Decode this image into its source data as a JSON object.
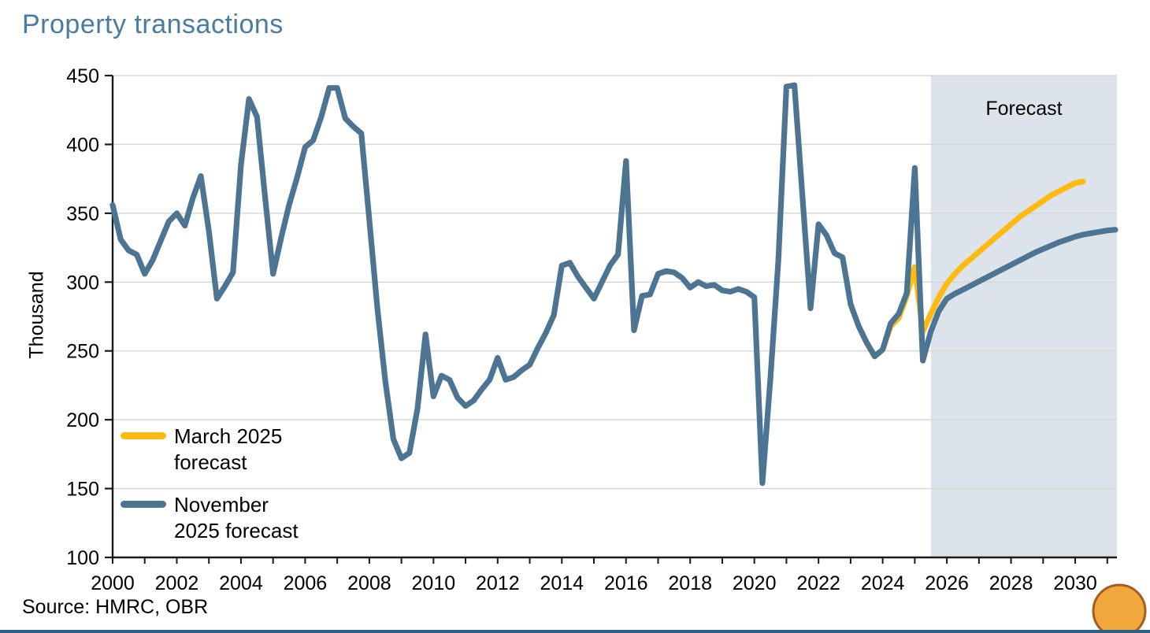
{
  "page": {
    "title": "Property transactions",
    "source": "Source: HMRC, OBR"
  },
  "chart_data": {
    "type": "line",
    "title": "Property transactions",
    "ylabel": "Thousand",
    "xlabel": "",
    "ylim": [
      100,
      450
    ],
    "yticks": [
      100,
      150,
      200,
      250,
      300,
      350,
      400,
      450
    ],
    "xlim": [
      2000,
      2031.3
    ],
    "xtick_labels": [
      2000,
      2002,
      2004,
      2006,
      2008,
      2010,
      2012,
      2014,
      2016,
      2018,
      2020,
      2022,
      2024,
      2026,
      2028,
      2030
    ],
    "x_minor_tick_step": 1,
    "grid": "horizontal",
    "legend_position": "inside-bottom-left",
    "forecast_region": {
      "start": 2025.5,
      "end": 2031.3,
      "label": "Forecast",
      "fill": "#DCE3EB"
    },
    "series": [
      {
        "name": "March 2025 forecast",
        "color": "#FDBA12",
        "x_start": 2023.0,
        "x_step": 0.25,
        "values": [
          284,
          268,
          256,
          246,
          251,
          268,
          274,
          290,
          311,
          264,
          277,
          289,
          299,
          306,
          312,
          317,
          322,
          327,
          332,
          337,
          342,
          347,
          351,
          355,
          359,
          363,
          366,
          369,
          372,
          373
        ]
      },
      {
        "name": "November 2025 forecast",
        "color": "#4D7493",
        "x_start": 2000.0,
        "x_step": 0.25,
        "values": [
          356,
          331,
          323,
          320,
          306,
          316,
          330,
          344,
          350,
          341,
          361,
          377,
          337,
          288,
          297,
          307,
          385,
          433,
          420,
          362,
          306,
          332,
          356,
          376,
          398,
          403,
          420,
          441,
          441,
          419,
          413,
          408,
          345,
          281,
          228,
          186,
          172,
          176,
          208,
          262,
          217,
          232,
          229,
          216,
          210,
          214,
          222,
          229,
          245,
          229,
          231,
          236,
          240,
          252,
          263,
          276,
          312,
          314,
          304,
          296,
          288,
          300,
          312,
          320,
          388,
          265,
          290,
          291,
          306,
          308,
          307,
          303,
          296,
          300,
          297,
          298,
          294,
          293,
          295,
          293,
          289,
          154,
          230,
          316,
          442,
          443,
          362,
          281,
          342,
          334,
          321,
          318,
          284,
          268,
          256,
          246,
          251,
          270,
          277,
          292,
          383,
          243,
          264,
          279,
          288,
          291.5,
          294.5,
          297.5,
          300.5,
          303.5,
          306.5,
          309.5,
          312.5,
          315.5,
          318.5,
          321.5,
          324,
          326.5,
          329,
          331,
          333,
          334.5,
          335.5,
          336.5,
          337.5,
          338
        ]
      }
    ],
    "source": "Source: HMRC, OBR",
    "colors": {
      "title": "#4A7BA2",
      "grid": "#D6D6D6",
      "axis": "#1A1A1A",
      "bottom_border": "#2D6286",
      "decorative_circle_fill": "#F0A73C",
      "decorative_circle_edge": "#A65E20"
    }
  }
}
